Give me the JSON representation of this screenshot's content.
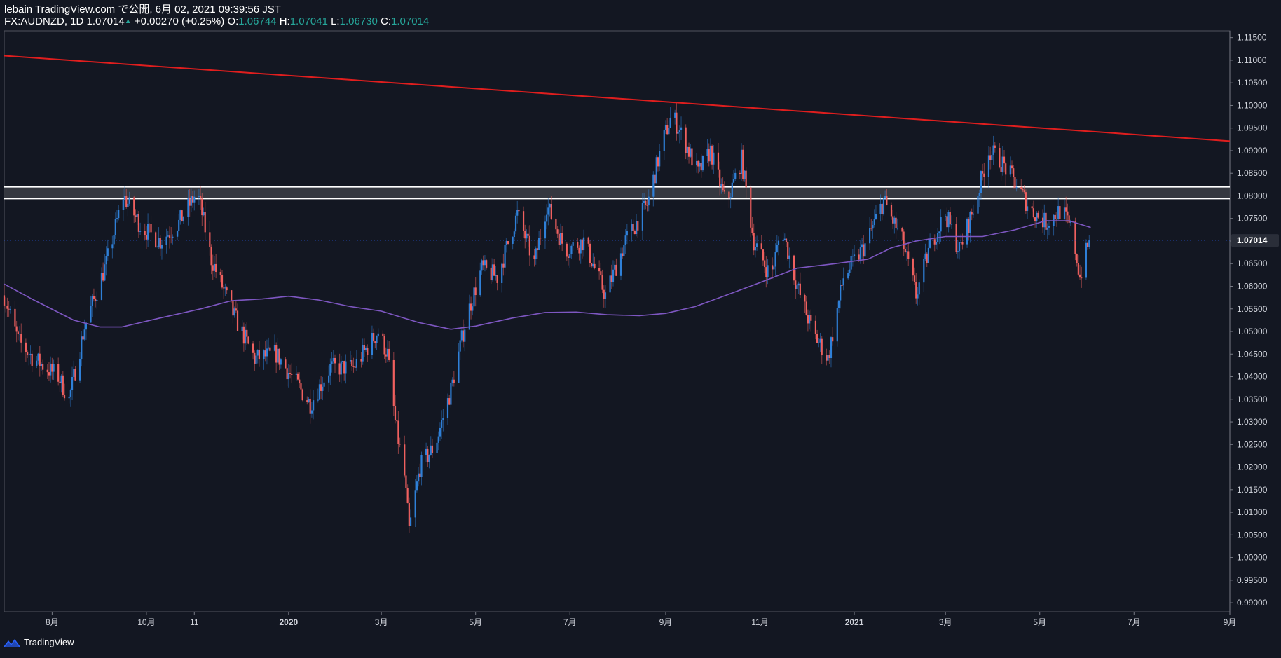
{
  "header": {
    "publisher": "lebain TradingView.com で公開, 6月 02, 2021 09:39:56 JST",
    "symbol": "FX:AUDNZD, 1D",
    "last": "1.07014",
    "change_arrow": "▲",
    "change": "+0.00270 (+0.25%)",
    "o_label": "O:",
    "o_value": "1.06744",
    "h_label": "H:",
    "h_value": "1.07041",
    "l_label": "L:",
    "l_value": "1.06730",
    "c_label": "C:",
    "c_value": "1.07014"
  },
  "footer": {
    "brand": "TradingView"
  },
  "colors": {
    "background": "#131722",
    "up": "#2f80d8",
    "down": "#f0605f",
    "trendline": "#e01e1e",
    "ma": "#7e57c2",
    "zone_fill": "#3a3c44",
    "zone_border": "#ffffff",
    "axis_text": "#d1d4dc",
    "price_badge": "#2a2e39"
  },
  "chart_data": {
    "type": "candlestick",
    "symbol": "FX:AUDNZD",
    "interval": "1D",
    "x_range": [
      "2019-07-01",
      "2021-09-01"
    ],
    "ylim": [
      0.988,
      1.1165
    ],
    "y_ticks": [
      "1.11500",
      "1.11000",
      "1.10500",
      "1.10000",
      "1.09500",
      "1.09000",
      "1.08500",
      "1.08000",
      "1.07500",
      "1.07000",
      "1.06500",
      "1.06000",
      "1.05500",
      "1.05000",
      "1.04500",
      "1.04000",
      "1.03500",
      "1.03000",
      "1.02500",
      "1.02000",
      "1.01500",
      "1.01000",
      "1.00500",
      "1.00000",
      "0.99500",
      "0.99000"
    ],
    "x_ticks": [
      {
        "date": "2019-08-01",
        "label": "8月"
      },
      {
        "date": "2019-10-01",
        "label": "10月"
      },
      {
        "date": "2019-11-01",
        "label": "11"
      },
      {
        "date": "2020-01-01",
        "label": "2020"
      },
      {
        "date": "2020-03-01",
        "label": "3月"
      },
      {
        "date": "2020-05-01",
        "label": "5月"
      },
      {
        "date": "2020-07-01",
        "label": "7月"
      },
      {
        "date": "2020-09-01",
        "label": "9月"
      },
      {
        "date": "2020-11-01",
        "label": "11月"
      },
      {
        "date": "2021-01-01",
        "label": "2021"
      },
      {
        "date": "2021-03-01",
        "label": "3月"
      },
      {
        "date": "2021-05-01",
        "label": "5月"
      },
      {
        "date": "2021-07-01",
        "label": "7月"
      },
      {
        "date": "2021-09-01",
        "label": "9月"
      }
    ],
    "last_price": "1.07014",
    "close_path": [
      [
        "2019-07-01",
        1.058
      ],
      [
        "2019-07-10",
        1.048
      ],
      [
        "2019-07-20",
        1.044
      ],
      [
        "2019-08-05",
        1.04
      ],
      [
        "2019-08-12",
        1.035
      ],
      [
        "2019-08-22",
        1.051
      ],
      [
        "2019-09-05",
        1.065
      ],
      [
        "2019-09-16",
        1.08
      ],
      [
        "2019-09-28",
        1.073
      ],
      [
        "2019-10-10",
        1.07
      ],
      [
        "2019-10-22",
        1.074
      ],
      [
        "2019-11-03",
        1.081
      ],
      [
        "2019-11-12",
        1.066
      ],
      [
        "2019-11-26",
        1.054
      ],
      [
        "2019-12-10",
        1.044
      ],
      [
        "2019-12-24",
        1.045
      ],
      [
        "2020-01-05",
        1.039
      ],
      [
        "2020-01-15",
        1.034
      ],
      [
        "2020-01-28",
        1.042
      ],
      [
        "2020-02-12",
        1.042
      ],
      [
        "2020-02-28",
        1.05
      ],
      [
        "2020-03-05",
        1.045
      ],
      [
        "2020-03-10",
        1.03
      ],
      [
        "2020-03-16",
        1.018
      ],
      [
        "2020-03-19",
        1.006
      ],
      [
        "2020-03-26",
        1.02
      ],
      [
        "2020-04-05",
        1.025
      ],
      [
        "2020-04-15",
        1.037
      ],
      [
        "2020-04-25",
        1.053
      ],
      [
        "2020-05-05",
        1.064
      ],
      [
        "2020-05-15",
        1.062
      ],
      [
        "2020-05-28",
        1.076
      ],
      [
        "2020-06-08",
        1.065
      ],
      [
        "2020-06-16",
        1.078
      ],
      [
        "2020-06-28",
        1.068
      ],
      [
        "2020-07-10",
        1.07
      ],
      [
        "2020-07-24",
        1.058
      ],
      [
        "2020-08-06",
        1.07
      ],
      [
        "2020-08-20",
        1.078
      ],
      [
        "2020-08-30",
        1.092
      ],
      [
        "2020-09-05",
        1.098
      ],
      [
        "2020-09-12",
        1.093
      ],
      [
        "2020-09-22",
        1.085
      ],
      [
        "2020-09-30",
        1.09
      ],
      [
        "2020-10-10",
        1.078
      ],
      [
        "2020-10-20",
        1.088
      ],
      [
        "2020-10-28",
        1.07
      ],
      [
        "2020-11-08",
        1.062
      ],
      [
        "2020-11-15",
        1.073
      ],
      [
        "2020-11-25",
        1.06
      ],
      [
        "2020-12-05",
        1.05
      ],
      [
        "2020-12-15",
        1.044
      ],
      [
        "2020-12-25",
        1.062
      ],
      [
        "2021-01-08",
        1.069
      ],
      [
        "2021-01-20",
        1.079
      ],
      [
        "2021-02-01",
        1.07
      ],
      [
        "2021-02-10",
        1.058
      ],
      [
        "2021-02-20",
        1.07
      ],
      [
        "2021-03-01",
        1.076
      ],
      [
        "2021-03-10",
        1.068
      ],
      [
        "2021-03-20",
        1.078
      ],
      [
        "2021-03-29",
        1.09
      ],
      [
        "2021-04-05",
        1.088
      ],
      [
        "2021-04-15",
        1.083
      ],
      [
        "2021-04-25",
        1.077
      ],
      [
        "2021-05-05",
        1.074
      ],
      [
        "2021-05-15",
        1.077
      ],
      [
        "2021-05-22",
        1.072
      ],
      [
        "2021-05-27",
        1.062
      ],
      [
        "2021-06-02",
        1.0701
      ]
    ],
    "series": [
      {
        "name": "trendline",
        "type": "line",
        "points": [
          [
            "2019-07-01",
            1.111
          ],
          [
            "2021-09-01",
            1.0921
          ]
        ]
      },
      {
        "name": "moving_average",
        "type": "line",
        "points": [
          [
            "2019-07-01",
            1.0605
          ],
          [
            "2019-07-20",
            1.057
          ],
          [
            "2019-08-15",
            1.0525
          ],
          [
            "2019-09-01",
            1.051
          ],
          [
            "2019-09-15",
            1.051
          ],
          [
            "2019-10-10",
            1.053
          ],
          [
            "2019-11-05",
            1.055
          ],
          [
            "2019-11-25",
            1.0568
          ],
          [
            "2019-12-15",
            1.0572
          ],
          [
            "2020-01-01",
            1.0578
          ],
          [
            "2020-01-20",
            1.057
          ],
          [
            "2020-02-10",
            1.0555
          ],
          [
            "2020-03-01",
            1.0545
          ],
          [
            "2020-03-25",
            1.052
          ],
          [
            "2020-04-15",
            1.0505
          ],
          [
            "2020-05-01",
            1.0512
          ],
          [
            "2020-05-25",
            1.053
          ],
          [
            "2020-06-15",
            1.0542
          ],
          [
            "2020-07-05",
            1.0543
          ],
          [
            "2020-07-25",
            1.0537
          ],
          [
            "2020-08-15",
            1.0535
          ],
          [
            "2020-09-01",
            1.054
          ],
          [
            "2020-09-20",
            1.0555
          ],
          [
            "2020-10-10",
            1.058
          ],
          [
            "2020-11-01",
            1.0608
          ],
          [
            "2020-11-25",
            1.064
          ],
          [
            "2020-12-20",
            1.065
          ],
          [
            "2021-01-10",
            1.066
          ],
          [
            "2021-01-25",
            1.0685
          ],
          [
            "2021-02-10",
            1.07
          ],
          [
            "2021-03-01",
            1.071
          ],
          [
            "2021-03-25",
            1.071
          ],
          [
            "2021-04-15",
            1.0725
          ],
          [
            "2021-05-05",
            1.0745
          ],
          [
            "2021-05-20",
            1.0745
          ],
          [
            "2021-06-03",
            1.073
          ]
        ]
      }
    ],
    "zones": [
      {
        "name": "resistance_zone",
        "y_from": 1.0794,
        "y_to": 1.082
      }
    ]
  }
}
